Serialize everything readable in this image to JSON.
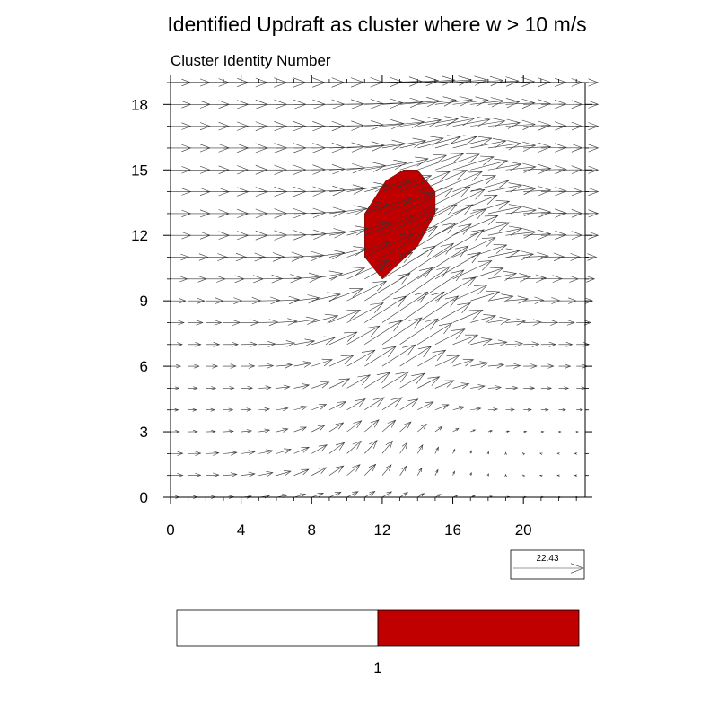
{
  "chart_data": {
    "type": "vector-field",
    "title": "Identified Updraft as cluster where w > 10 m/s",
    "subtitle": "Cluster Identity Number",
    "xlim": [
      0,
      23.5
    ],
    "ylim": [
      0,
      19
    ],
    "x_ticks": [
      0,
      4,
      8,
      12,
      16,
      20
    ],
    "x_tick_labels": [
      "0",
      "4",
      "8",
      "12",
      "16",
      "20"
    ],
    "y_ticks": [
      0,
      3,
      6,
      9,
      12,
      15,
      18
    ],
    "y_tick_labels": [
      "0",
      "3",
      "6",
      "9",
      "12",
      "15",
      "18"
    ],
    "grid": false,
    "cluster": {
      "id": 1,
      "color": "#c00000",
      "polygon": [
        [
          11,
          13
        ],
        [
          12.2,
          14.5
        ],
        [
          13.2,
          15
        ],
        [
          14,
          15
        ],
        [
          15,
          14
        ],
        [
          15,
          13
        ],
        [
          14,
          11.5
        ],
        [
          12,
          10
        ],
        [
          11,
          11
        ]
      ]
    },
    "reference_vector": {
      "magnitude": 22.43,
      "label": "22.43"
    },
    "colorbar": {
      "colors": [
        "#ffffff",
        "#c00000"
      ],
      "labels": [
        "1"
      ]
    }
  }
}
